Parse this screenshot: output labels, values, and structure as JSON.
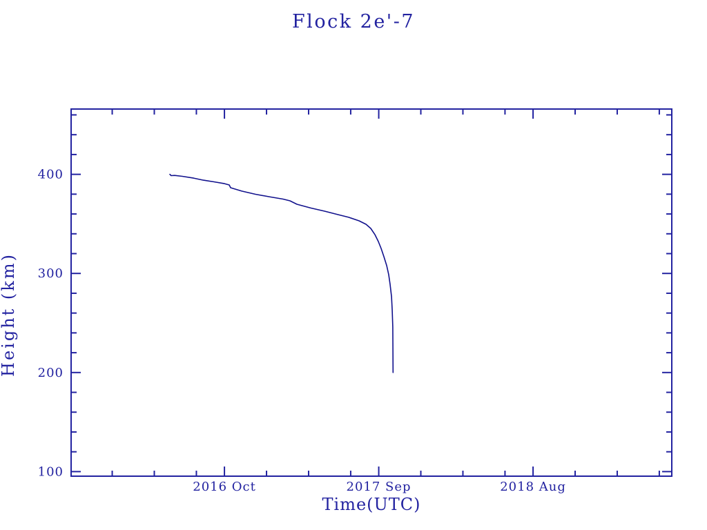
{
  "page": {
    "background": "#ffffff"
  },
  "chart_data": {
    "type": "line",
    "title": "Flock 2e'-7",
    "xlabel": "Time(UTC)",
    "ylabel": "Height (km)",
    "grid": false,
    "legend": null,
    "colors": {
      "axis": "#2222a0",
      "text": "#2222a0",
      "line": "#10108c",
      "background": "#ffffff"
    },
    "x_axis": {
      "unit_note": "x values are months, 0 = 2016 Jan",
      "range_months": [
        -1.93,
        40.89
      ],
      "major_ticks": [
        {
          "month": 9,
          "label": "2016 Oct"
        },
        {
          "month": 20,
          "label": "2017 Sep"
        },
        {
          "month": 31,
          "label": "2018 Aug"
        }
      ],
      "minor_ticks_months": [
        1,
        4,
        7,
        12,
        15,
        18,
        23,
        26,
        29,
        34,
        37,
        40
      ]
    },
    "y_axis": {
      "range_km": [
        95.4,
        465.9
      ],
      "major_ticks_km": [
        100,
        200,
        300,
        400
      ],
      "major_tick_labels": [
        "100",
        "200",
        "300",
        "400"
      ],
      "minor_step_km": 20
    },
    "series": [
      {
        "name": "height_km_vs_time",
        "points": [
          [
            5.11,
            400.0
          ],
          [
            5.2,
            398.7
          ],
          [
            5.45,
            398.9
          ],
          [
            6.0,
            398.0
          ],
          [
            6.8,
            396.2
          ],
          [
            7.5,
            394.1
          ],
          [
            8.26,
            392.4
          ],
          [
            9.0,
            390.6
          ],
          [
            9.34,
            389.3
          ],
          [
            9.44,
            386.5
          ],
          [
            10.23,
            383.1
          ],
          [
            11.21,
            379.9
          ],
          [
            12.2,
            377.4
          ],
          [
            13.18,
            375.0
          ],
          [
            13.67,
            373.3
          ],
          [
            14.17,
            369.8
          ],
          [
            15.15,
            366.0
          ],
          [
            16.14,
            362.8
          ],
          [
            17.12,
            359.3
          ],
          [
            17.86,
            356.6
          ],
          [
            18.6,
            353.1
          ],
          [
            19.09,
            349.6
          ],
          [
            19.43,
            345.4
          ],
          [
            19.73,
            339.1
          ],
          [
            19.97,
            332.2
          ],
          [
            20.17,
            325.2
          ],
          [
            20.37,
            316.8
          ],
          [
            20.57,
            307.8
          ],
          [
            20.71,
            298.7
          ],
          [
            20.81,
            289.0
          ],
          [
            20.91,
            276.4
          ],
          [
            20.96,
            262.5
          ],
          [
            21.0,
            246.0
          ],
          [
            21.01,
            224.0
          ],
          [
            21.02,
            200.0
          ]
        ]
      }
    ]
  }
}
